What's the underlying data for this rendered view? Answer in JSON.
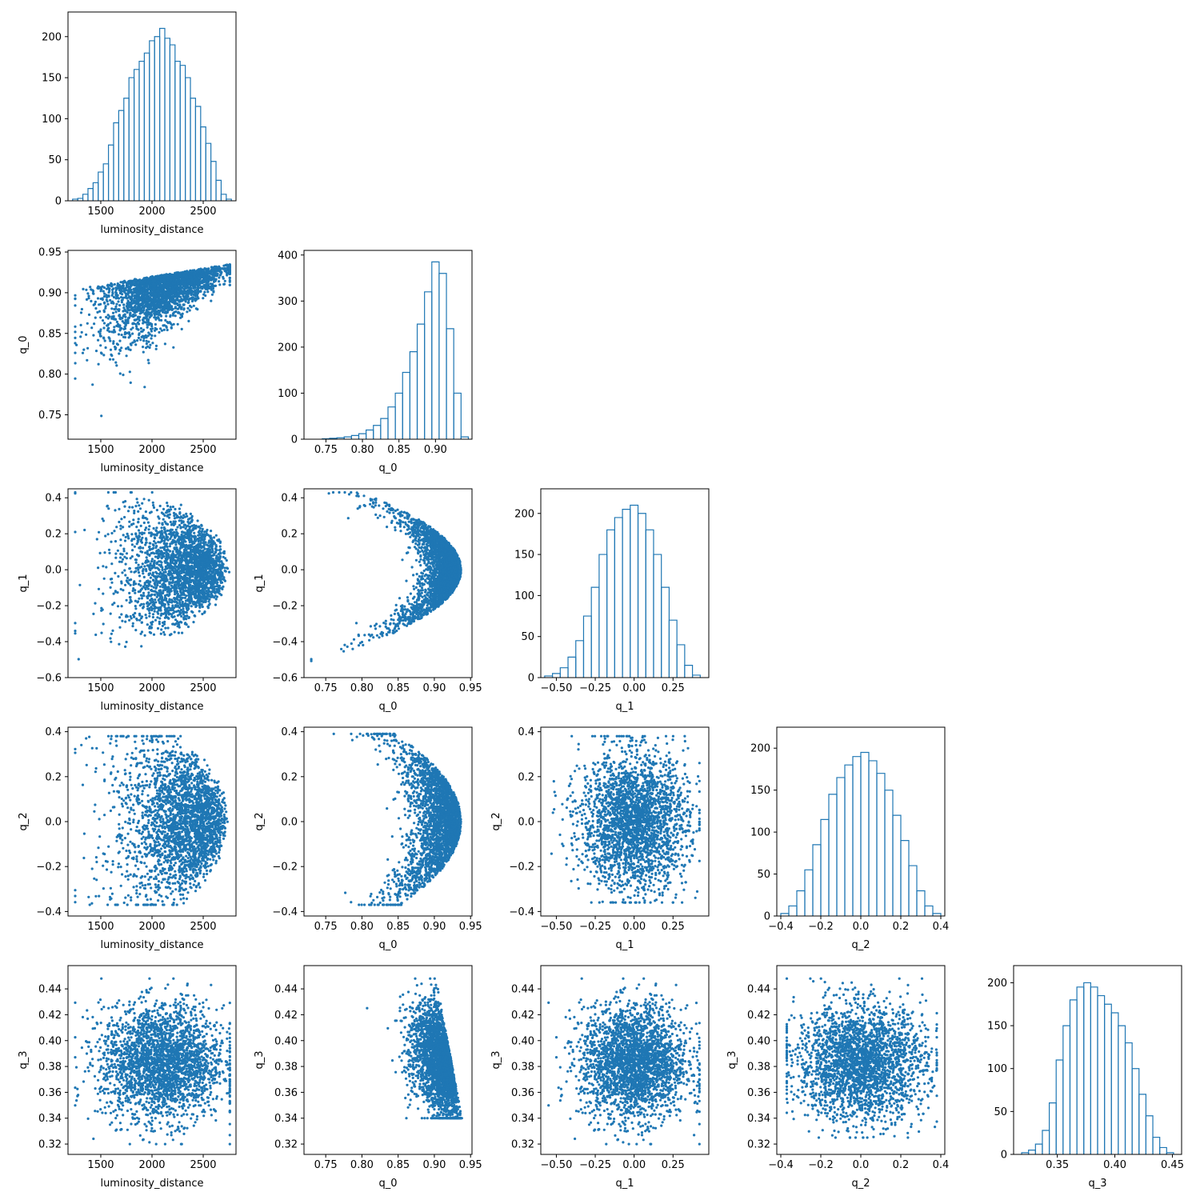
{
  "figure": {
    "type": "corner-plot",
    "variables": [
      "luminosity_distance",
      "q_0",
      "q_1",
      "q_2",
      "q_3"
    ],
    "colors": {
      "series": "#1f77b4",
      "axes": "#000000",
      "background": "#ffffff"
    }
  },
  "chart_data": [
    {
      "type": "bar",
      "style": "step-histogram",
      "xlabel": "luminosity_distance",
      "ylabel": "",
      "xlim": [
        1180,
        2820
      ],
      "ylim": [
        0,
        230
      ],
      "xticks": [
        1500,
        2000,
        2500
      ],
      "yticks": [
        0,
        50,
        100,
        150,
        200
      ],
      "x": [
        1250,
        1300,
        1350,
        1400,
        1450,
        1500,
        1550,
        1600,
        1650,
        1700,
        1750,
        1800,
        1850,
        1900,
        1950,
        2000,
        2050,
        2100,
        2150,
        2200,
        2250,
        2300,
        2350,
        2400,
        2450,
        2500,
        2550,
        2600,
        2650,
        2700,
        2750
      ],
      "values": [
        2,
        3,
        8,
        15,
        22,
        35,
        45,
        68,
        95,
        110,
        125,
        150,
        160,
        170,
        180,
        195,
        200,
        210,
        198,
        190,
        170,
        165,
        150,
        125,
        115,
        90,
        70,
        48,
        25,
        8,
        2
      ]
    },
    {
      "type": "scatter",
      "xlabel": "luminosity_distance",
      "ylabel": "q_0",
      "xlim": [
        1180,
        2820
      ],
      "ylim": [
        0.72,
        0.952
      ],
      "xticks": [
        1500,
        2000,
        2500
      ],
      "yticks": [
        0.75,
        0.8,
        0.85,
        0.9,
        0.95
      ],
      "pattern": "dl_q0"
    },
    {
      "type": "bar",
      "style": "step-histogram",
      "xlabel": "q_0",
      "ylabel": "",
      "xlim": [
        0.72,
        0.95
      ],
      "ylim": [
        0,
        410
      ],
      "xticks": [
        0.75,
        0.8,
        0.85,
        0.9
      ],
      "yticks": [
        0,
        100,
        200,
        300,
        400
      ],
      "x": [
        0.75,
        0.76,
        0.77,
        0.78,
        0.79,
        0.8,
        0.81,
        0.82,
        0.83,
        0.84,
        0.85,
        0.86,
        0.87,
        0.88,
        0.89,
        0.9,
        0.91,
        0.92,
        0.93,
        0.94
      ],
      "values": [
        1,
        2,
        3,
        5,
        8,
        12,
        20,
        30,
        45,
        70,
        100,
        145,
        190,
        250,
        320,
        385,
        360,
        240,
        100,
        5
      ]
    },
    {
      "type": "scatter",
      "xlabel": "luminosity_distance",
      "ylabel": "q_1",
      "xlim": [
        1180,
        2820
      ],
      "ylim": [
        -0.6,
        0.45
      ],
      "xticks": [
        1500,
        2000,
        2500
      ],
      "yticks": [
        -0.6,
        -0.4,
        -0.2,
        0.0,
        0.2,
        0.4
      ],
      "pattern": "dl_q1"
    },
    {
      "type": "scatter",
      "xlabel": "q_0",
      "ylabel": "q_1",
      "xlim": [
        0.72,
        0.952
      ],
      "ylim": [
        -0.6,
        0.45
      ],
      "xticks": [
        0.75,
        0.8,
        0.85,
        0.9,
        0.95
      ],
      "yticks": [
        -0.6,
        -0.4,
        -0.2,
        0.0,
        0.2,
        0.4
      ],
      "pattern": "q0_q1"
    },
    {
      "type": "bar",
      "style": "step-histogram",
      "xlabel": "q_1",
      "ylabel": "",
      "xlim": [
        -0.6,
        0.48
      ],
      "ylim": [
        0,
        230
      ],
      "xticks": [
        -0.5,
        -0.25,
        0.0,
        0.25
      ],
      "yticks": [
        0,
        50,
        100,
        150,
        200
      ],
      "x": [
        -0.55,
        -0.5,
        -0.45,
        -0.4,
        -0.35,
        -0.3,
        -0.25,
        -0.2,
        -0.15,
        -0.1,
        -0.05,
        0.0,
        0.05,
        0.1,
        0.15,
        0.2,
        0.25,
        0.3,
        0.35,
        0.4
      ],
      "values": [
        2,
        5,
        12,
        25,
        45,
        75,
        110,
        150,
        180,
        195,
        205,
        210,
        200,
        180,
        150,
        110,
        70,
        40,
        15,
        3
      ]
    },
    {
      "type": "scatter",
      "xlabel": "luminosity_distance",
      "ylabel": "q_2",
      "xlim": [
        1180,
        2820
      ],
      "ylim": [
        -0.42,
        0.42
      ],
      "xticks": [
        1500,
        2000,
        2500
      ],
      "yticks": [
        -0.4,
        -0.2,
        0.0,
        0.2,
        0.4
      ],
      "pattern": "dl_q2"
    },
    {
      "type": "scatter",
      "xlabel": "q_0",
      "ylabel": "q_2",
      "xlim": [
        0.72,
        0.952
      ],
      "ylim": [
        -0.42,
        0.42
      ],
      "xticks": [
        0.75,
        0.8,
        0.85,
        0.9,
        0.95
      ],
      "yticks": [
        -0.4,
        -0.2,
        0.0,
        0.2,
        0.4
      ],
      "pattern": "q0_q2"
    },
    {
      "type": "scatter",
      "xlabel": "q_1",
      "ylabel": "q_2",
      "xlim": [
        -0.6,
        0.48
      ],
      "ylim": [
        -0.42,
        0.42
      ],
      "xticks": [
        -0.5,
        -0.25,
        0.0,
        0.25
      ],
      "yticks": [
        -0.4,
        -0.2,
        0.0,
        0.2,
        0.4
      ],
      "pattern": "q1_q2"
    },
    {
      "type": "bar",
      "style": "step-histogram",
      "xlabel": "q_2",
      "ylabel": "",
      "xlim": [
        -0.42,
        0.42
      ],
      "ylim": [
        0,
        225
      ],
      "xticks": [
        -0.4,
        -0.2,
        0.0,
        0.2,
        0.4
      ],
      "yticks": [
        0,
        50,
        100,
        150,
        200
      ],
      "x": [
        -0.38,
        -0.34,
        -0.3,
        -0.26,
        -0.22,
        -0.18,
        -0.14,
        -0.1,
        -0.06,
        -0.02,
        0.02,
        0.06,
        0.1,
        0.14,
        0.18,
        0.22,
        0.26,
        0.3,
        0.34,
        0.38
      ],
      "values": [
        3,
        12,
        30,
        55,
        85,
        115,
        145,
        165,
        180,
        190,
        195,
        185,
        170,
        150,
        120,
        90,
        60,
        30,
        12,
        3
      ]
    },
    {
      "type": "scatter",
      "xlabel": "luminosity_distance",
      "ylabel": "q_3",
      "xlim": [
        1180,
        2820
      ],
      "ylim": [
        0.312,
        0.458
      ],
      "xticks": [
        1500,
        2000,
        2500
      ],
      "yticks": [
        0.32,
        0.34,
        0.36,
        0.38,
        0.4,
        0.42,
        0.44
      ],
      "pattern": "dl_q3"
    },
    {
      "type": "scatter",
      "xlabel": "q_0",
      "ylabel": "q_3",
      "xlim": [
        0.72,
        0.952
      ],
      "ylim": [
        0.312,
        0.458
      ],
      "xticks": [
        0.75,
        0.8,
        0.85,
        0.9,
        0.95
      ],
      "yticks": [
        0.32,
        0.34,
        0.36,
        0.38,
        0.4,
        0.42,
        0.44
      ],
      "pattern": "q0_q3"
    },
    {
      "type": "scatter",
      "xlabel": "q_1",
      "ylabel": "q_3",
      "xlim": [
        -0.6,
        0.48
      ],
      "ylim": [
        0.312,
        0.458
      ],
      "xticks": [
        -0.5,
        -0.25,
        0.0,
        0.25
      ],
      "yticks": [
        0.32,
        0.34,
        0.36,
        0.38,
        0.4,
        0.42,
        0.44
      ],
      "pattern": "q1_q3"
    },
    {
      "type": "scatter",
      "xlabel": "q_2",
      "ylabel": "q_3",
      "xlim": [
        -0.42,
        0.42
      ],
      "ylim": [
        0.312,
        0.458
      ],
      "xticks": [
        -0.4,
        -0.2,
        0.0,
        0.2,
        0.4
      ],
      "yticks": [
        0.32,
        0.34,
        0.36,
        0.38,
        0.4,
        0.42,
        0.44
      ],
      "pattern": "q2_q3"
    },
    {
      "type": "bar",
      "style": "step-histogram",
      "xlabel": "q_3",
      "ylabel": "",
      "xlim": [
        0.312,
        0.458
      ],
      "ylim": [
        0,
        220
      ],
      "xticks": [
        0.35,
        0.4,
        0.45
      ],
      "yticks": [
        0,
        50,
        100,
        150,
        200
      ],
      "x": [
        0.322,
        0.328,
        0.334,
        0.34,
        0.346,
        0.352,
        0.358,
        0.364,
        0.37,
        0.376,
        0.382,
        0.388,
        0.394,
        0.4,
        0.406,
        0.412,
        0.418,
        0.424,
        0.43,
        0.436,
        0.442,
        0.448
      ],
      "values": [
        2,
        5,
        12,
        28,
        60,
        110,
        150,
        180,
        195,
        200,
        195,
        185,
        175,
        165,
        150,
        130,
        100,
        70,
        45,
        20,
        8,
        2
      ]
    }
  ]
}
